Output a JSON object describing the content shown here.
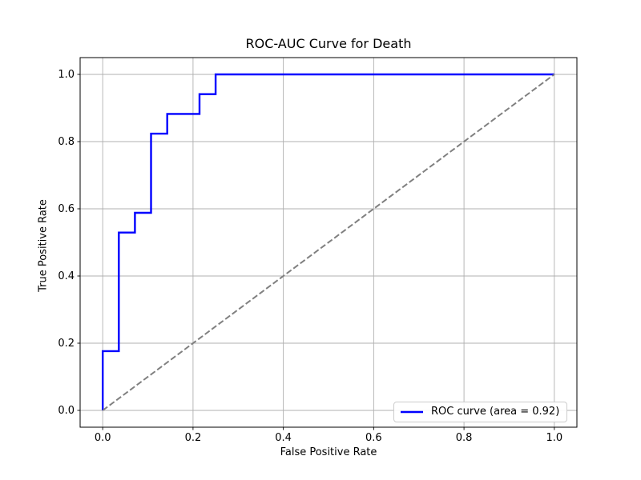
{
  "chart_data": {
    "type": "line",
    "title": "ROC-AUC Curve for Death",
    "xlabel": "False Positive Rate",
    "ylabel": "True Positive Rate",
    "xlim": [
      -0.05,
      1.05
    ],
    "ylim": [
      -0.05,
      1.05
    ],
    "xticks": [
      0.0,
      0.2,
      0.4,
      0.6,
      0.8,
      1.0
    ],
    "yticks": [
      0.0,
      0.2,
      0.4,
      0.6,
      0.8,
      1.0
    ],
    "grid": true,
    "auc": 0.92,
    "legend": {
      "position": "lower right",
      "entries": [
        {
          "label": "ROC curve (area = 0.92)",
          "color": "#0000ff"
        }
      ]
    },
    "series": [
      {
        "id": "roc-curve",
        "color": "#0000ff",
        "style": "solid",
        "width": 2.4,
        "x": [
          0.0,
          0.0,
          0.0357,
          0.0357,
          0.0714,
          0.0714,
          0.1071,
          0.1071,
          0.1429,
          0.1429,
          0.2143,
          0.2143,
          0.25,
          0.25,
          1.0
        ],
        "y": [
          0.0,
          0.1765,
          0.1765,
          0.5294,
          0.5294,
          0.5882,
          0.5882,
          0.8235,
          0.8235,
          0.8824,
          0.8824,
          0.9412,
          0.9412,
          1.0,
          1.0
        ]
      },
      {
        "id": "chance-diagonal",
        "color": "#808080",
        "style": "dashed",
        "width": 2,
        "x": [
          0.0,
          1.0
        ],
        "y": [
          0.0,
          1.0
        ]
      }
    ]
  },
  "colors": {
    "background": "#ffffff",
    "grid": "#b0b0b0",
    "spine": "#000000",
    "tick": "#000000",
    "text": "#000000",
    "legend_border": "#cccccc"
  }
}
